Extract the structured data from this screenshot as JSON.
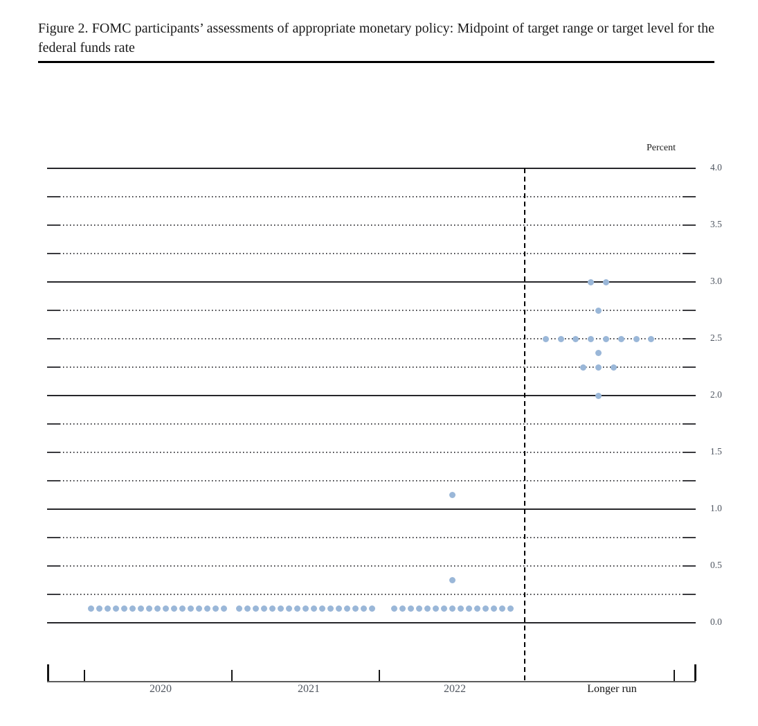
{
  "caption": "Figure 2. FOMC participants’ assessments of appropriate monetary policy: Midpoint of target range or target level for the federal funds rate",
  "chart_data": {
    "type": "scatter",
    "subtype": "fomc-dot-plot",
    "title": "Figure 2. FOMC participants’ assessments of appropriate monetary policy: Midpoint of target range or target level for the federal funds rate",
    "xlabel": "",
    "ylabel": "Percent",
    "ylim": [
      0.0,
      4.0
    ],
    "y_gridline_interval": 0.25,
    "y_label_interval": 0.5,
    "y_solid_gridlines": [
      0.0,
      1.0,
      2.0,
      3.0,
      4.0
    ],
    "y_tick_labels": [
      "4.0",
      "3.5",
      "3.0",
      "2.5",
      "2.0",
      "1.5",
      "1.0",
      "0.5",
      "0.0"
    ],
    "grid": "horizontal; dotted every 0.25, solid at whole percents, short solid end-ticks on dotted lines",
    "legend": null,
    "categories": [
      "2020",
      "2021",
      "2022",
      "Longer run"
    ],
    "separator": {
      "style": "vertical-dashed",
      "between": [
        "2022",
        "Longer run"
      ]
    },
    "series": [
      {
        "category": "2020",
        "dots": [
          {
            "value": 0.125,
            "count": 17
          }
        ]
      },
      {
        "category": "2021",
        "dots": [
          {
            "value": 0.125,
            "count": 17
          }
        ]
      },
      {
        "category": "2022",
        "dots": [
          {
            "value": 0.125,
            "count": 15
          },
          {
            "value": 0.375,
            "count": 1
          },
          {
            "value": 1.125,
            "count": 1
          }
        ]
      },
      {
        "category": "Longer run",
        "dots": [
          {
            "value": 2.0,
            "count": 1
          },
          {
            "value": 2.25,
            "count": 3
          },
          {
            "value": 2.375,
            "count": 1
          },
          {
            "value": 2.5,
            "count": 8
          },
          {
            "value": 2.75,
            "count": 1
          },
          {
            "value": 3.0,
            "count": 2
          }
        ]
      }
    ],
    "colors": {
      "dot": "#9ab7d8",
      "solid_grid": "#26262a",
      "dotted_grid": "#3c3c40",
      "y_tick_label": "#4e5560",
      "year_label": "#50565f",
      "longer_run_label": "#111111",
      "separator": "#000000"
    }
  }
}
